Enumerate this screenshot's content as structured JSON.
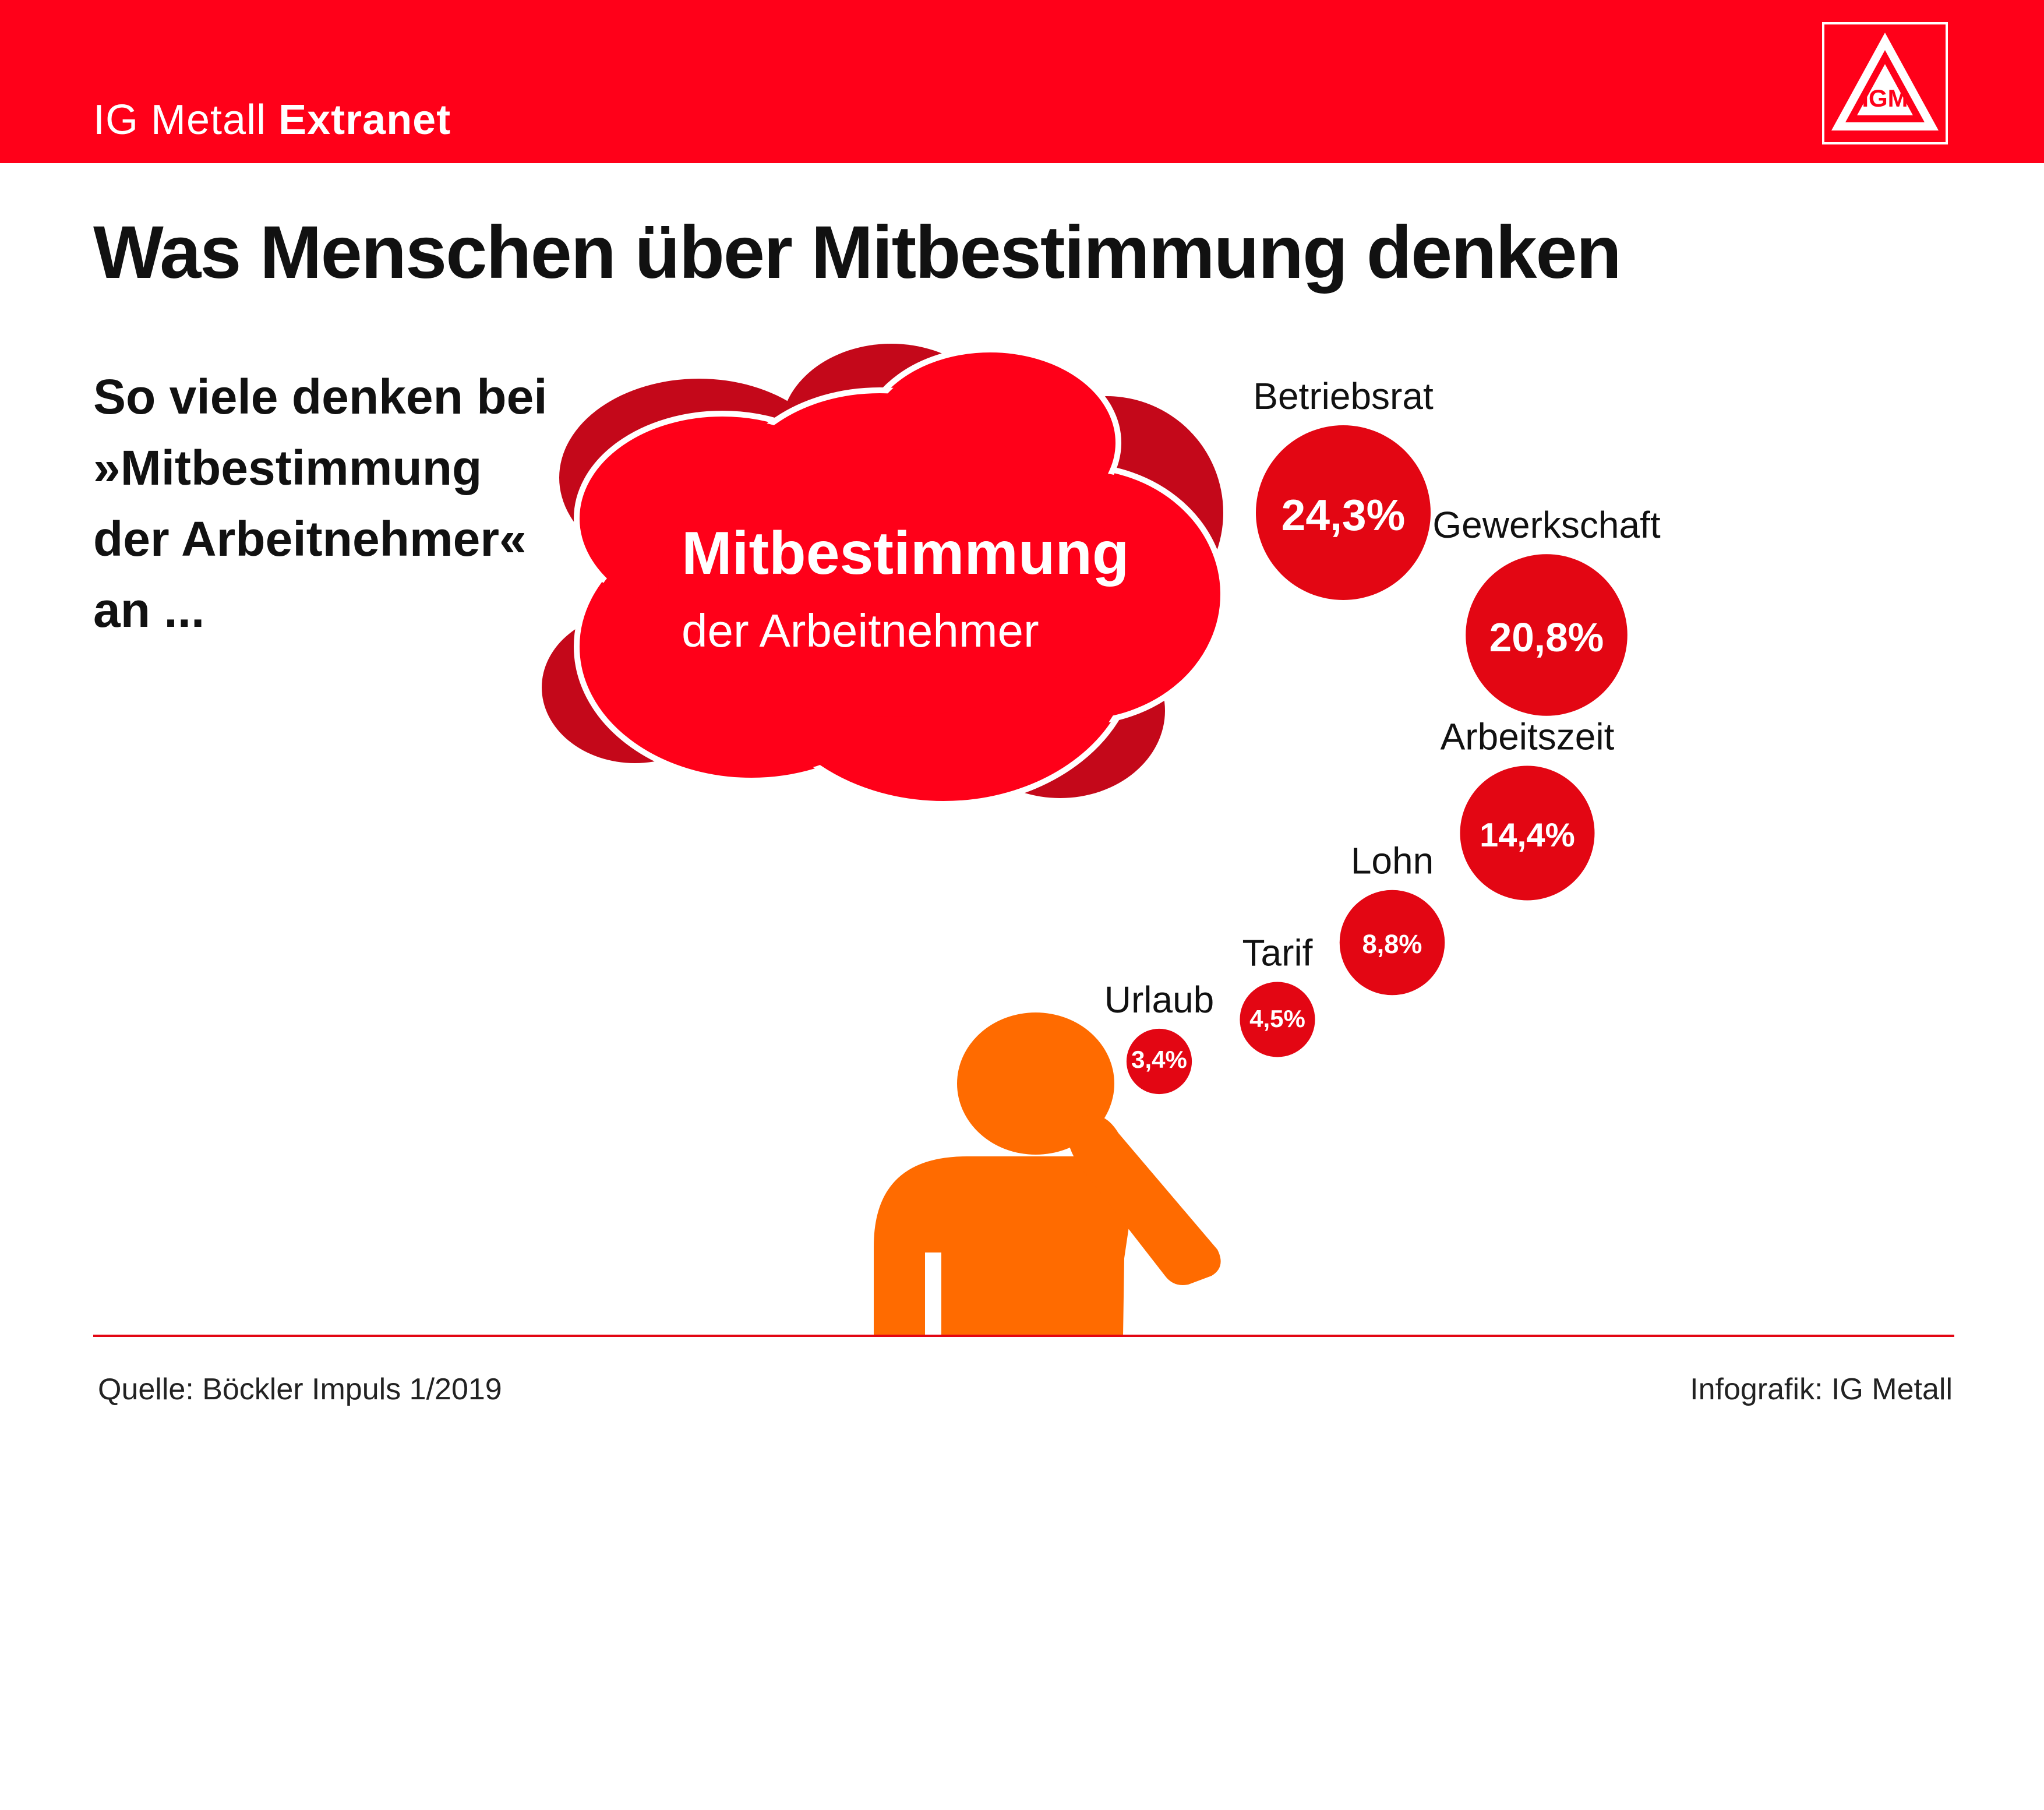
{
  "header": {
    "brand_light": "IG Metall",
    "brand_bold": "Extranet",
    "logo_icon": "igm-triangle-logo-icon",
    "logo_letters": "IGM",
    "bar_color": "#ff0019"
  },
  "title": "Was Menschen über Mitbestimmung denken",
  "intro": {
    "line1": "So viele denken bei",
    "line2": "»Mitbestimmung",
    "line3": "der Arbeitnehmer«",
    "line4": "an ..."
  },
  "cloud": {
    "title": "Mitbestimmung",
    "subtitle": "der Arbeitnehmer",
    "color": "#ff0019",
    "shadow_color": "#c4081a"
  },
  "person_icon": "thinking-person-icon",
  "person_color": "#ff6b00",
  "chart_data": {
    "type": "bubble",
    "categories": [
      "Betriebsrat",
      "Gewerkschaft",
      "Arbeitszeit",
      "Lohn",
      "Tarif",
      "Urlaub"
    ],
    "values": [
      24.3,
      20.8,
      14.4,
      8.8,
      4.5,
      3.4
    ],
    "value_labels": [
      "24,3%",
      "20,8%",
      "14,4%",
      "8,8%",
      "4,5%",
      "3,4%"
    ],
    "unit": "%",
    "color": "#e30613"
  },
  "footer": {
    "source": "Quelle: Böckler Impuls 1/2019",
    "credit": "Infografik: IG Metall"
  }
}
